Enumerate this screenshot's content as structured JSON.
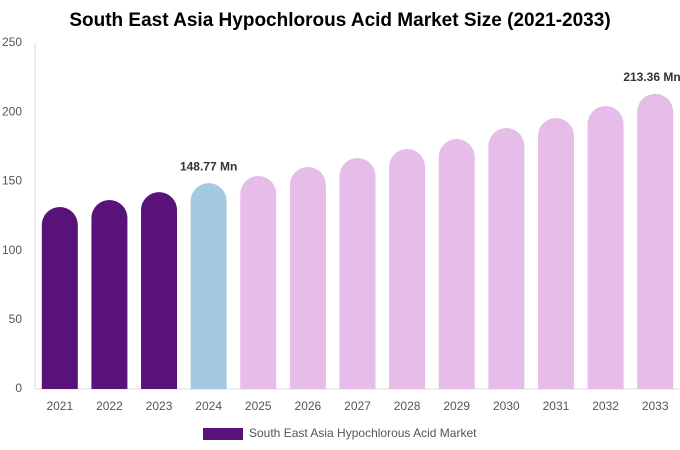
{
  "chart_data": {
    "type": "bar",
    "title": "South East Asia Hypochlorous Acid Market Size (2021-2033)",
    "categories": [
      "2021",
      "2022",
      "2023",
      "2024",
      "2025",
      "2026",
      "2027",
      "2028",
      "2029",
      "2030",
      "2031",
      "2032",
      "2033"
    ],
    "series": [
      {
        "name": "South East Asia Hypochlorous Acid Market",
        "color": "#58127a",
        "values": [
          131.5,
          136.6,
          142.3,
          148.77,
          153.9,
          160.4,
          166.9,
          173.4,
          180.6,
          188.6,
          195.8,
          204.5,
          213.36
        ],
        "value_labels": [
          null,
          null,
          null,
          "148.77 Mn",
          null,
          null,
          null,
          null,
          null,
          null,
          null,
          null,
          "213.36 Mn"
        ],
        "colors": [
          "#58127a",
          "#58127a",
          "#58127a",
          "#a3cadf",
          "#e5bde8",
          "#e5bde8",
          "#e5bde8",
          "#e5bde8",
          "#e5bde8",
          "#e5bde8",
          "#e5bde8",
          "#e5bde8",
          "#e5bde8"
        ]
      }
    ],
    "ylim": [
      0,
      250
    ],
    "yticks": [
      0,
      50,
      100,
      150,
      200,
      250
    ],
    "grid": false
  }
}
